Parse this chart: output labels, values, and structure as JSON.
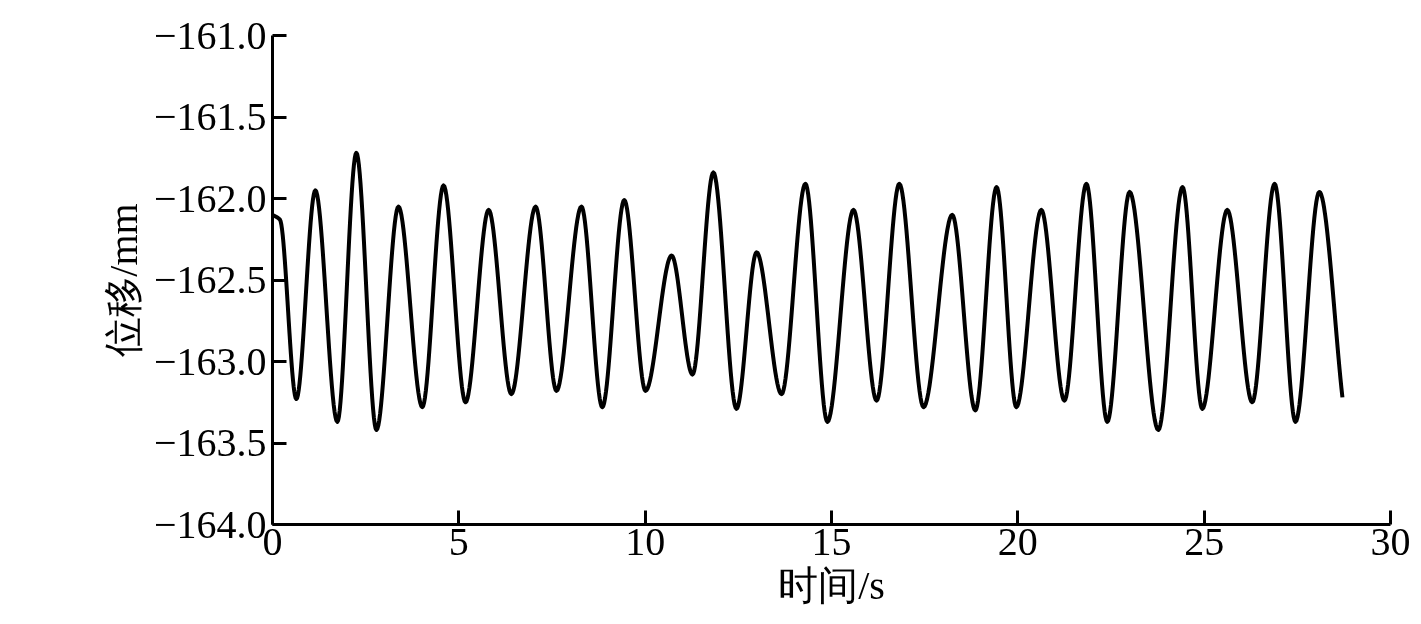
{
  "chart_data": {
    "type": "line",
    "xlabel": "时间/s",
    "ylabel": "位移/mm",
    "x": [
      0,
      0.2,
      0.64,
      1.15,
      1.74,
      2.25,
      2.79,
      3.38,
      4.02,
      4.59,
      5.18,
      5.8,
      6.41,
      7.06,
      7.62,
      8.29,
      8.85,
      9.44,
      10.01,
      10.71,
      11.27,
      11.83,
      12.45,
      12.99,
      13.66,
      14.3,
      14.89,
      15.59,
      16.21,
      16.82,
      17.47,
      18.24,
      18.86,
      19.43,
      19.96,
      20.63,
      21.25,
      21.84,
      22.4,
      23.0,
      23.77,
      24.42,
      24.95,
      25.62,
      26.29,
      26.89,
      27.45,
      28.09,
      28.71
    ],
    "series": [
      {
        "color": "#000000",
        "values": [
          -162.1,
          -162.13,
          -163.23,
          -161.95,
          -163.37,
          -161.72,
          -163.42,
          -162.05,
          -163.28,
          -161.92,
          -163.25,
          -162.07,
          -163.2,
          -162.05,
          -163.18,
          -162.05,
          -163.28,
          -162.01,
          -163.18,
          -162.35,
          -163.08,
          -161.84,
          -163.29,
          -162.33,
          -163.2,
          -161.91,
          -163.37,
          -162.07,
          -163.24,
          -161.91,
          -163.28,
          -162.1,
          -163.3,
          -161.93,
          -163.28,
          -162.07,
          -163.24,
          -161.91,
          -163.37,
          -161.96,
          -163.42,
          -161.93,
          -163.29,
          -162.07,
          -163.25,
          -161.91,
          -163.37,
          -161.96,
          -163.22
        ]
      }
    ],
    "xlim": [
      0,
      30
    ],
    "xticks": [
      0,
      5,
      10,
      15,
      20,
      25,
      30
    ],
    "ylim": [
      -164,
      -161
    ],
    "yticks": [
      {
        "value": -161,
        "label": "−161.0"
      },
      {
        "value": -161.5,
        "label": "−161.5"
      },
      {
        "value": -162,
        "label": "−162.0"
      },
      {
        "value": -162.5,
        "label": "−162.5"
      },
      {
        "value": -163,
        "label": "−163.0"
      },
      {
        "value": -163.5,
        "label": "−163.5"
      },
      {
        "value": -164,
        "label": "−164.0"
      }
    ],
    "grid": false,
    "marker": "none",
    "line_style": "solid"
  }
}
